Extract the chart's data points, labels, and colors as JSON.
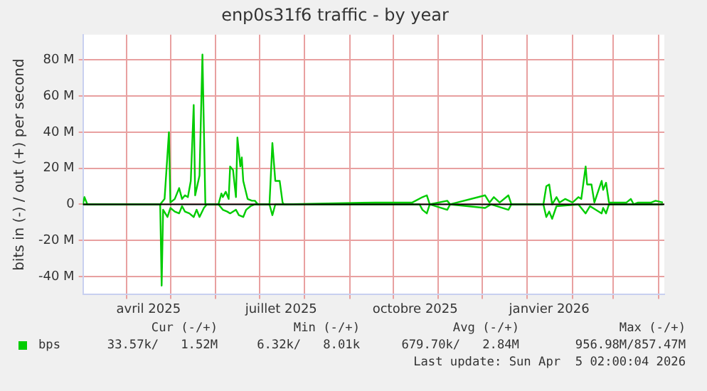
{
  "chart_data": {
    "type": "line",
    "title": "enp0s31f6 traffic - by year",
    "ylabel": "bits in (-) / out (+) per second",
    "xlim": [
      "2025-03-02",
      "2026-04-05"
    ],
    "xticks": [
      {
        "value": "2025-04-01",
        "label": null
      },
      {
        "value": "2025-04-16",
        "label": "avril 2025"
      },
      {
        "value": "2025-05-01",
        "label": null
      },
      {
        "value": "2025-06-01",
        "label": null
      },
      {
        "value": "2025-07-01",
        "label": null
      },
      {
        "value": "2025-07-16",
        "label": "juillet 2025"
      },
      {
        "value": "2025-08-01",
        "label": null
      },
      {
        "value": "2025-09-01",
        "label": null
      },
      {
        "value": "2025-10-01",
        "label": null
      },
      {
        "value": "2025-10-16",
        "label": "octobre 2025"
      },
      {
        "value": "2025-11-01",
        "label": null
      },
      {
        "value": "2025-12-01",
        "label": null
      },
      {
        "value": "2026-01-01",
        "label": null
      },
      {
        "value": "2026-01-16",
        "label": "janvier 2026"
      },
      {
        "value": "2026-02-01",
        "label": null
      },
      {
        "value": "2026-03-01",
        "label": null
      },
      {
        "value": "2026-04-01",
        "label": null
      }
    ],
    "ylim": [
      -50,
      94
    ],
    "yticks": [
      {
        "value": -40,
        "label": "-40 M"
      },
      {
        "value": -20,
        "label": "-20 M"
      },
      {
        "value": 0,
        "label": "0"
      },
      {
        "value": 20,
        "label": "20 M"
      },
      {
        "value": 40,
        "label": "40 M"
      },
      {
        "value": 60,
        "label": "60 M"
      },
      {
        "value": 80,
        "label": "80 M"
      }
    ],
    "grid": true,
    "legend": "bottom",
    "marker": "none",
    "line_style": "solid",
    "ref_lines": [
      {
        "axis": "y",
        "value": 0,
        "color": "#000000"
      }
    ],
    "series": [
      {
        "name": "bps",
        "color": "#00cc00",
        "x": [
          "2025-03-02",
          "2025-03-03",
          "2025-03-05",
          "2025-04-24",
          "2025-04-27",
          "2025-04-30",
          "2025-05-01",
          "2025-05-04",
          "2025-05-07",
          "2025-05-09",
          "2025-05-11",
          "2025-05-13",
          "2025-05-15",
          "2025-05-17",
          "2025-05-18",
          "2025-05-21",
          "2025-05-23",
          "2025-05-25",
          "2025-06-03",
          "2025-06-05",
          "2025-06-06",
          "2025-06-08",
          "2025-06-10",
          "2025-06-11",
          "2025-06-13",
          "2025-06-15",
          "2025-06-16",
          "2025-06-18",
          "2025-06-19",
          "2025-06-20",
          "2025-06-23",
          "2025-06-26",
          "2025-06-28",
          "2025-06-30",
          "2025-07-08",
          "2025-07-10",
          "2025-07-12",
          "2025-07-15",
          "2025-07-17",
          "2025-07-18",
          "2025-09-19",
          "2025-10-14",
          "2025-10-21",
          "2025-10-24",
          "2025-10-26",
          "2025-11-07",
          "2025-11-09",
          "2025-12-03",
          "2025-12-06",
          "2025-12-09",
          "2025-12-13",
          "2025-12-19",
          "2025-12-21",
          "2026-01-12",
          "2026-01-14",
          "2026-01-16",
          "2026-01-18",
          "2026-01-21",
          "2026-01-23",
          "2026-01-27",
          "2026-02-01",
          "2026-02-05",
          "2026-02-07",
          "2026-02-10",
          "2026-02-11",
          "2026-02-14",
          "2026-02-16",
          "2026-02-21",
          "2026-02-22",
          "2026-02-24",
          "2026-02-26",
          "2026-03-10",
          "2026-03-13",
          "2026-03-15",
          "2026-03-18",
          "2026-03-27",
          "2026-03-30",
          "2026-04-04"
        ],
        "values": [
          0,
          4,
          0,
          0,
          3,
          40,
          1,
          3,
          9,
          3,
          5,
          4,
          13,
          55,
          5,
          16,
          83,
          0,
          0,
          6,
          4,
          7,
          3,
          21,
          19,
          4,
          37,
          21,
          26,
          13,
          3,
          2,
          2,
          0,
          0,
          34,
          13,
          13,
          1,
          0,
          1,
          1,
          4,
          5,
          0,
          2,
          0,
          5,
          1,
          4,
          1,
          5,
          0,
          0,
          10,
          11,
          0,
          4,
          1,
          3,
          1,
          4,
          3,
          21,
          11,
          11,
          1,
          13,
          8,
          12,
          1,
          1,
          3,
          0,
          1,
          1,
          2,
          1
        ]
      },
      {
        "color": "#00cc00",
        "x": [
          "2025-03-02",
          "2025-04-24",
          "2025-04-25",
          "2025-04-26",
          "2025-04-29",
          "2025-05-01",
          "2025-05-04",
          "2025-05-07",
          "2025-05-09",
          "2025-05-11",
          "2025-05-14",
          "2025-05-17",
          "2025-05-19",
          "2025-05-21",
          "2025-05-24",
          "2025-05-26",
          "2025-06-03",
          "2025-06-06",
          "2025-06-09",
          "2025-06-11",
          "2025-06-15",
          "2025-06-17",
          "2025-06-20",
          "2025-06-22",
          "2025-06-25",
          "2025-06-28",
          "2025-07-08",
          "2025-07-10",
          "2025-07-12",
          "2025-10-19",
          "2025-10-21",
          "2025-10-24",
          "2025-10-26",
          "2025-11-07",
          "2025-11-09",
          "2025-12-03",
          "2025-12-07",
          "2025-12-19",
          "2025-12-21",
          "2026-01-12",
          "2026-01-14",
          "2026-01-16",
          "2026-01-18",
          "2026-01-21",
          "2026-02-05",
          "2026-02-10",
          "2026-02-13",
          "2026-02-21",
          "2026-02-22",
          "2026-02-24",
          "2026-02-26",
          "2026-04-04"
        ],
        "values": [
          0,
          0,
          -45,
          -3,
          -7,
          -2,
          -4,
          -5,
          -1,
          -4,
          -5,
          -7,
          -3,
          -7,
          -2,
          0,
          0,
          -3,
          -4,
          -5,
          -3,
          -6,
          -7,
          -3,
          -1,
          0,
          0,
          -6,
          0,
          0,
          -3,
          -5,
          0,
          -3,
          0,
          -2,
          0,
          -3,
          0,
          0,
          -7,
          -4,
          -8,
          -1,
          0,
          -5,
          -1,
          -5,
          -2,
          -5,
          0,
          0
        ]
      }
    ],
    "annotations": [
      "Cur (-/+)",
      "Min (-/+)",
      "Avg (-/+)",
      "Max (-/+)",
      "33.57k/   1.52M",
      "6.32k/   8.01k",
      "679.70k/   2.84M",
      "956.98M/857.47M",
      "Last update: Sun Apr  5 02:00:04 2026"
    ]
  }
}
